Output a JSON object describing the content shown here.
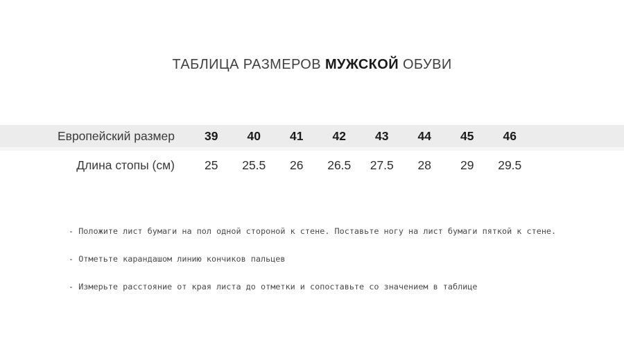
{
  "title": {
    "prefix": "ТАБЛИЦА РАЗМЕРОВ ",
    "bold": "МУЖСКОЙ",
    "suffix": " ОБУВИ"
  },
  "table": {
    "rows": [
      {
        "label": "Европейский размер",
        "values": [
          "39",
          "40",
          "41",
          "42",
          "43",
          "44",
          "45",
          "46"
        ]
      },
      {
        "label": "Длина стопы (см)",
        "values": [
          "25",
          "25.5",
          "26",
          "26.5",
          "27.5",
          "28",
          "29",
          "29.5"
        ]
      }
    ]
  },
  "instructions": [
    "- Положите лист бумаги на пол одной стороной к стене. Поставьте ногу на лист бумаги пяткой к стене.",
    "- Отметьте карандашом линию кончиков пальцев",
    "- Измерьте расстояние от края листа до отметки и сопоставьте со значением в таблице"
  ],
  "colors": {
    "header_band": "#ececec",
    "band_border": "#f6f6f6",
    "title_text": "#3f3f3f",
    "bold_text": "#1a1a1a",
    "body_text": "#3a3a3a",
    "instruction_text": "#4a4a4a"
  }
}
